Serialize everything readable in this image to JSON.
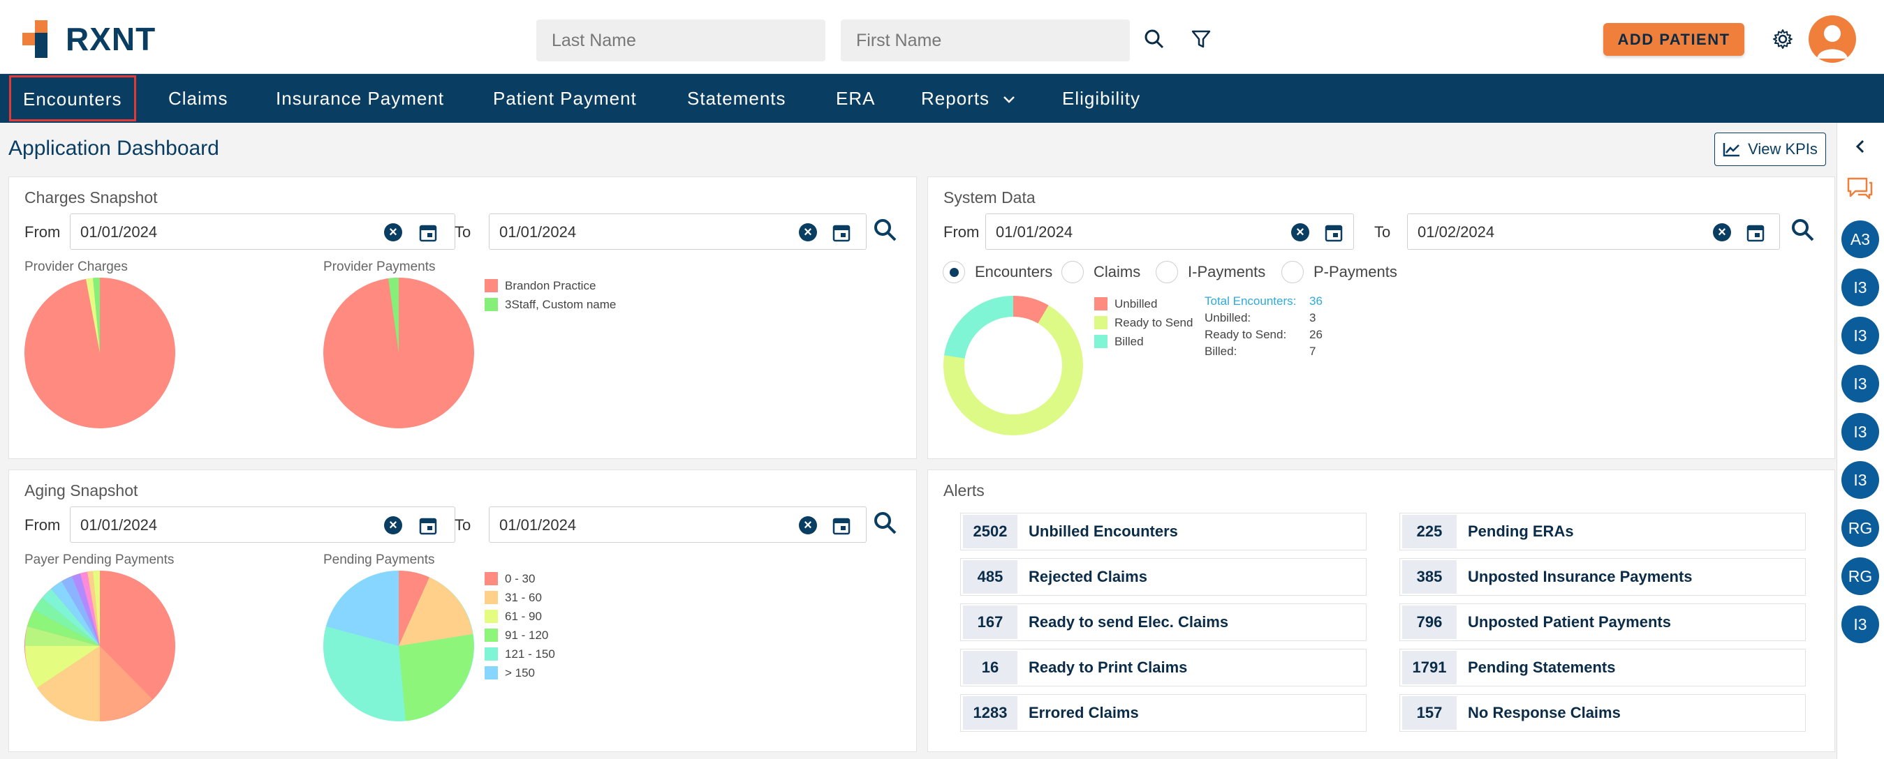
{
  "brand": {
    "name": "RXNT",
    "accent": "#f07f3c",
    "primary": "#0a3d62"
  },
  "header": {
    "last_name_placeholder": "Last Name",
    "first_name_placeholder": "First Name",
    "add_patient_label": "ADD PATIENT",
    "icons": [
      "search-icon",
      "filter-icon",
      "gear-icon",
      "user-avatar"
    ]
  },
  "nav": {
    "items": [
      {
        "label": "Encounters",
        "active": true
      },
      {
        "label": "Claims"
      },
      {
        "label": "Insurance Payment"
      },
      {
        "label": "Patient Payment"
      },
      {
        "label": "Statements"
      },
      {
        "label": "ERA"
      },
      {
        "label": "Reports",
        "dropdown": true
      },
      {
        "label": "Eligibility"
      }
    ]
  },
  "page": {
    "title": "Application Dashboard",
    "kpi_label": "View KPIs"
  },
  "rail": {
    "items": [
      "A3",
      "I3",
      "I3",
      "I3",
      "I3",
      "I3",
      "RG",
      "RG",
      "I3"
    ]
  },
  "charges": {
    "title": "Charges Snapshot",
    "from_label": "From",
    "to_label": "To",
    "from": "01/01/2024",
    "to": "01/01/2024",
    "provider_charges_label": "Provider Charges",
    "provider_payments_label": "Provider Payments",
    "legend": [
      {
        "label": "Brandon Practice",
        "color": "#ff8a80"
      },
      {
        "label": "3Staff, Custom name",
        "color": "#85ef7a"
      }
    ]
  },
  "system": {
    "title": "System Data",
    "from_label": "From",
    "to_label": "To",
    "from": "01/01/2024",
    "to": "01/02/2024",
    "radios": [
      {
        "label": "Encounters",
        "checked": true
      },
      {
        "label": "Claims"
      },
      {
        "label": "I-Payments"
      },
      {
        "label": "P-Payments"
      }
    ],
    "legend": [
      {
        "label": "Unbilled",
        "color": "#ff8a80"
      },
      {
        "label": "Ready to Send",
        "color": "#ddfa86"
      },
      {
        "label": "Billed",
        "color": "#7ff5d5"
      }
    ],
    "stats": {
      "total_label": "Total Encounters:",
      "total_value": "36",
      "unbilled_label": "Unbilled:",
      "unbilled_value": "3",
      "ready_label": "Ready to Send:",
      "ready_value": "26",
      "billed_label": "Billed:",
      "billed_value": "7"
    }
  },
  "aging": {
    "title": "Aging Snapshot",
    "from_label": "From",
    "to_label": "To",
    "from": "01/01/2024",
    "to": "01/01/2024",
    "payer_label": "Payer Pending Payments",
    "pending_label": "Pending Payments",
    "legend": [
      {
        "label": "0 - 30",
        "color": "#ff8a80"
      },
      {
        "label": "31 - 60",
        "color": "#ffd08a"
      },
      {
        "label": "61 - 90",
        "color": "#e4fc80"
      },
      {
        "label": "91 - 120",
        "color": "#8cf57a"
      },
      {
        "label": "121 - 150",
        "color": "#7ff5d5"
      },
      {
        "label": "> 150",
        "color": "#86d6ff"
      }
    ]
  },
  "alerts": {
    "title": "Alerts",
    "left": [
      {
        "count": "2502",
        "label": "Unbilled Encounters"
      },
      {
        "count": "485",
        "label": "Rejected Claims"
      },
      {
        "count": "167",
        "label": "Ready to send Elec. Claims"
      },
      {
        "count": "16",
        "label": "Ready to Print Claims"
      },
      {
        "count": "1283",
        "label": "Errored Claims"
      }
    ],
    "right": [
      {
        "count": "225",
        "label": "Pending ERAs"
      },
      {
        "count": "385",
        "label": "Unposted Insurance Payments"
      },
      {
        "count": "796",
        "label": "Unposted Patient Payments"
      },
      {
        "count": "1791",
        "label": "Pending Statements"
      },
      {
        "count": "157",
        "label": "No Response Claims"
      }
    ]
  }
}
